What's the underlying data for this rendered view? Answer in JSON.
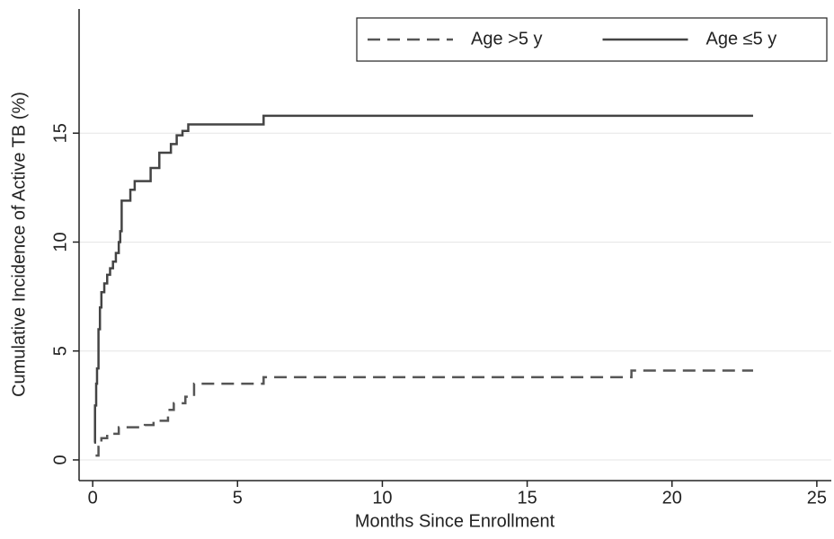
{
  "chart_data": {
    "type": "step",
    "xlabel": "Months Since Enrollment",
    "ylabel": "Cumulative Incidence of Active TB (%)",
    "xlim": [
      -0.47,
      25.5
    ],
    "xticks": [
      0,
      5,
      10,
      15,
      20,
      25
    ],
    "ylim": [
      -0.95,
      20.7
    ],
    "yticks": [
      0,
      5,
      10,
      15
    ],
    "grid": true,
    "legend": "top-right",
    "series": [
      {
        "name": "Age >5 y",
        "color": "#555555",
        "style": "dashed",
        "x": [
          0.1,
          0.2,
          0.3,
          0.5,
          0.9,
          1.8,
          2.1,
          2.6,
          2.8,
          3.2,
          3.5,
          5.9,
          18.6,
          22.8
        ],
        "values": [
          0.2,
          0.6,
          1.0,
          1.2,
          1.5,
          1.6,
          1.8,
          2.3,
          2.6,
          2.9,
          3.5,
          3.8,
          4.1,
          4.1
        ]
      },
      {
        "name": "Age ≤5 y",
        "color": "#444444",
        "style": "solid",
        "x": [
          0.05,
          0.08,
          0.12,
          0.15,
          0.2,
          0.25,
          0.3,
          0.4,
          0.5,
          0.6,
          0.7,
          0.8,
          0.9,
          0.95,
          1.0,
          1.3,
          1.45,
          2.0,
          2.3,
          2.7,
          2.9,
          3.1,
          3.3,
          5.9,
          22.8
        ],
        "values": [
          0.8,
          2.5,
          3.5,
          4.2,
          6.0,
          7.0,
          7.7,
          8.1,
          8.5,
          8.8,
          9.1,
          9.5,
          10.0,
          10.5,
          11.9,
          12.4,
          12.8,
          13.4,
          14.1,
          14.5,
          14.9,
          15.1,
          15.4,
          15.8,
          15.8
        ]
      }
    ]
  }
}
